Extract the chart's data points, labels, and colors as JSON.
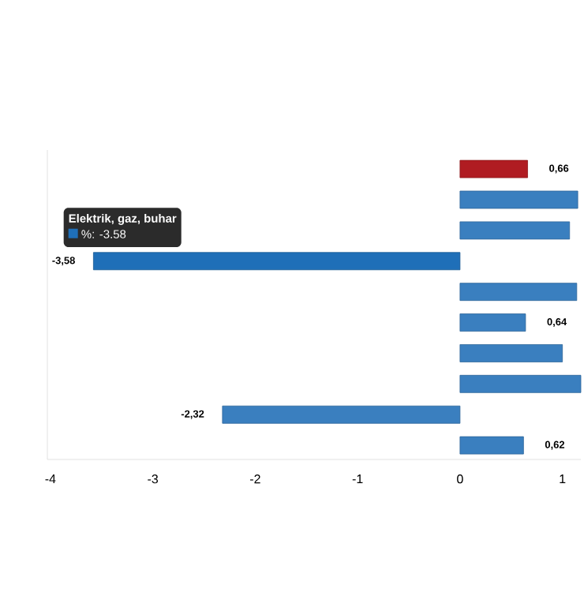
{
  "chart_data": {
    "type": "bar",
    "orientation": "horizontal",
    "categories": [
      null,
      null,
      null,
      null,
      null,
      null,
      null,
      null,
      null,
      null
    ],
    "values": [
      0.66,
      1.15,
      1.07,
      -3.58,
      1.14,
      0.64,
      1.0,
      1.18,
      -2.32,
      0.62
    ],
    "colors": [
      "#b01c22",
      "#3a7fbf",
      "#3a7fbf",
      "#1f6fb8",
      "#3a7fbf",
      "#3a7fbf",
      "#3a7fbf",
      "#3a7fbf",
      "#3a7fbf",
      "#3a7fbf"
    ],
    "value_labels": [
      "0,66",
      null,
      null,
      "-3,58",
      null,
      "0,64",
      null,
      null,
      "-2,32",
      "0,62"
    ],
    "xlim": [
      -4.03,
      1.18
    ],
    "xticks": [
      -4,
      -3,
      -2,
      -1,
      0,
      1
    ],
    "grid": false,
    "annotations": [
      "Elektrik, gaz, buhar",
      "%: -3.58"
    ]
  }
}
